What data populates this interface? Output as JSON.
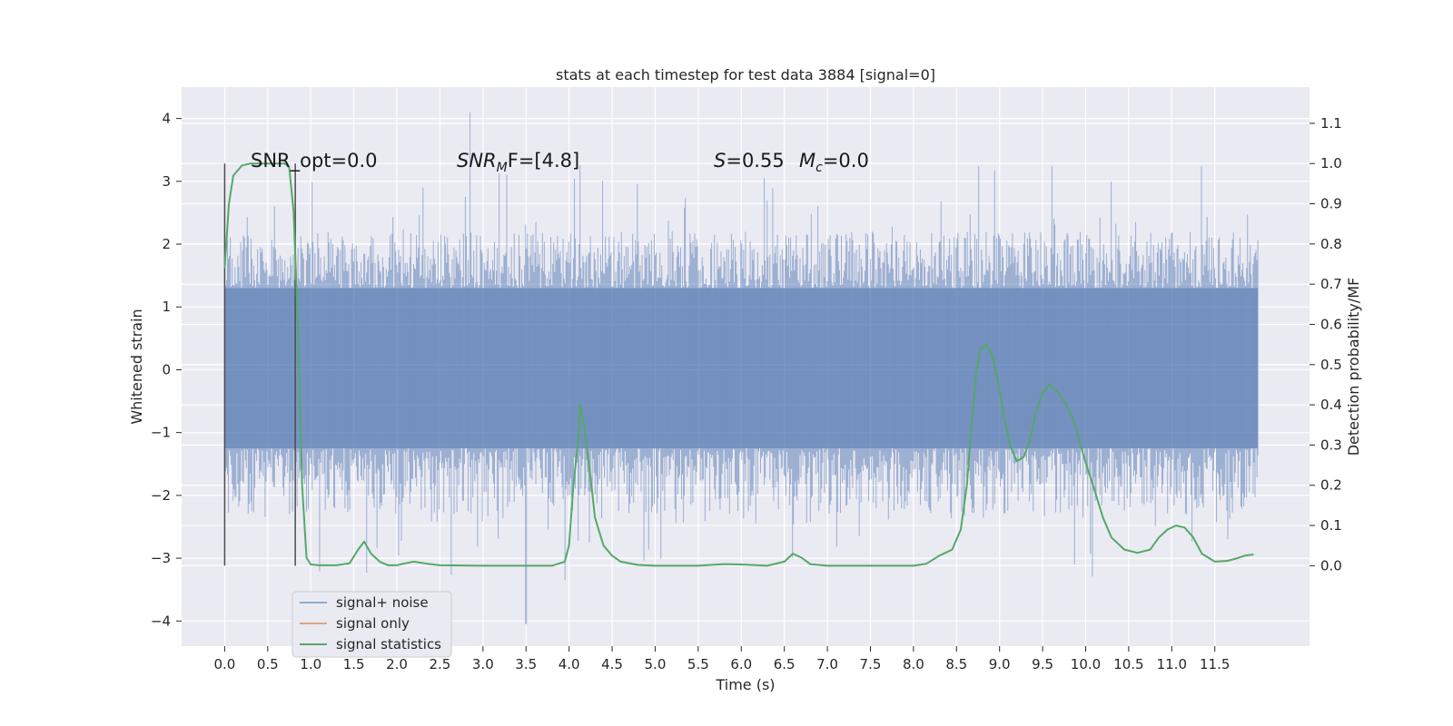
{
  "chart_data": {
    "type": "line",
    "title": "stats at each timestep for test data 3884 [signal=0]",
    "xlabel": "Time (s)",
    "ylabel_left": "Whitened strain",
    "ylabel_right": "Detection probability/MF",
    "xlim": [
      -0.5,
      12.6
    ],
    "ylim_left": [
      -4.4,
      4.5
    ],
    "ylim_right": [
      -0.2,
      1.19
    ],
    "x_ticks": [
      "0.0",
      "0.5",
      "1.0",
      "1.5",
      "2.0",
      "2.5",
      "3.0",
      "3.5",
      "4.0",
      "4.5",
      "5.0",
      "5.5",
      "6.0",
      "6.5",
      "7.0",
      "7.5",
      "8.0",
      "8.5",
      "9.0",
      "9.5",
      "10.0",
      "10.5",
      "11.0",
      "11.5"
    ],
    "y_ticks_left": [
      "4",
      "3",
      "2",
      "1",
      "0",
      "−1",
      "−2",
      "−3",
      "−4"
    ],
    "y_ticks_right": [
      "1.1",
      "1.0",
      "0.9",
      "0.8",
      "0.7",
      "0.6",
      "0.5",
      "0.4",
      "0.3",
      "0.2",
      "0.1",
      "0.0"
    ],
    "grid": true,
    "background": "#eaeaf2",
    "annotations": {
      "snr_opt": "SNR_opt=0.0",
      "snr_mf_prefix": "SNR",
      "snr_mf_sub": "M",
      "snr_mf_suffix": "F=[4.8]",
      "s_label": "S",
      "s_value": "=0.55",
      "mc_label": "M",
      "mc_sub": "c",
      "mc_value": "=0.0"
    },
    "window_markers_x": [
      0.0,
      0.82
    ],
    "series": [
      {
        "name": "signal+ noise",
        "color": "#4c72b0",
        "axis": "left",
        "kind": "dense_noise",
        "x_range": [
          0.0,
          12.0
        ],
        "band": [
          -1.25,
          1.3
        ],
        "envelope_upper": [
          2.2,
          3.5
        ],
        "envelope_lower": [
          -2.3,
          -3.6
        ],
        "peak_max": [
          2.85,
          4.1
        ],
        "peak_min": [
          3.5,
          -4.05
        ]
      },
      {
        "name": "signal only",
        "color": "#dd8452",
        "axis": "left",
        "kind": "line",
        "points": []
      },
      {
        "name": "signal statistics",
        "color": "#55a868",
        "axis": "right",
        "kind": "line",
        "points": [
          [
            0.0,
            0.74
          ],
          [
            0.05,
            0.9
          ],
          [
            0.1,
            0.97
          ],
          [
            0.2,
            0.995
          ],
          [
            0.3,
            1.0
          ],
          [
            0.4,
            1.0
          ],
          [
            0.5,
            1.0
          ],
          [
            0.6,
            1.0
          ],
          [
            0.7,
            1.0
          ],
          [
            0.75,
            0.99
          ],
          [
            0.8,
            0.88
          ],
          [
            0.85,
            0.6
          ],
          [
            0.9,
            0.2
          ],
          [
            0.95,
            0.02
          ],
          [
            1.0,
            0.003
          ],
          [
            1.1,
            0.001
          ],
          [
            1.3,
            0.001
          ],
          [
            1.45,
            0.006
          ],
          [
            1.55,
            0.04
          ],
          [
            1.62,
            0.06
          ],
          [
            1.7,
            0.03
          ],
          [
            1.8,
            0.01
          ],
          [
            1.9,
            0.001
          ],
          [
            2.0,
            0.001
          ],
          [
            2.1,
            0.006
          ],
          [
            2.2,
            0.01
          ],
          [
            2.35,
            0.005
          ],
          [
            2.5,
            0.001
          ],
          [
            3.0,
            0.0
          ],
          [
            3.5,
            0.0
          ],
          [
            3.8,
            0.0
          ],
          [
            3.95,
            0.01
          ],
          [
            4.0,
            0.05
          ],
          [
            4.05,
            0.2
          ],
          [
            4.1,
            0.3
          ],
          [
            4.13,
            0.4
          ],
          [
            4.18,
            0.34
          ],
          [
            4.25,
            0.22
          ],
          [
            4.3,
            0.12
          ],
          [
            4.4,
            0.05
          ],
          [
            4.5,
            0.025
          ],
          [
            4.6,
            0.01
          ],
          [
            4.8,
            0.002
          ],
          [
            5.0,
            0.0
          ],
          [
            5.5,
            0.0
          ],
          [
            5.8,
            0.004
          ],
          [
            6.0,
            0.003
          ],
          [
            6.3,
            0.0
          ],
          [
            6.5,
            0.01
          ],
          [
            6.6,
            0.03
          ],
          [
            6.7,
            0.02
          ],
          [
            6.8,
            0.004
          ],
          [
            7.0,
            0.0
          ],
          [
            7.5,
            0.0
          ],
          [
            8.0,
            0.0
          ],
          [
            8.15,
            0.005
          ],
          [
            8.3,
            0.025
          ],
          [
            8.45,
            0.04
          ],
          [
            8.55,
            0.09
          ],
          [
            8.62,
            0.2
          ],
          [
            8.68,
            0.36
          ],
          [
            8.73,
            0.48
          ],
          [
            8.78,
            0.54
          ],
          [
            8.85,
            0.55
          ],
          [
            8.92,
            0.52
          ],
          [
            8.98,
            0.46
          ],
          [
            9.05,
            0.37
          ],
          [
            9.12,
            0.3
          ],
          [
            9.2,
            0.26
          ],
          [
            9.28,
            0.27
          ],
          [
            9.35,
            0.31
          ],
          [
            9.42,
            0.38
          ],
          [
            9.5,
            0.43
          ],
          [
            9.58,
            0.45
          ],
          [
            9.68,
            0.43
          ],
          [
            9.78,
            0.4
          ],
          [
            9.88,
            0.35
          ],
          [
            9.98,
            0.27
          ],
          [
            10.1,
            0.19
          ],
          [
            10.2,
            0.12
          ],
          [
            10.3,
            0.07
          ],
          [
            10.45,
            0.04
          ],
          [
            10.6,
            0.032
          ],
          [
            10.75,
            0.04
          ],
          [
            10.85,
            0.07
          ],
          [
            10.95,
            0.09
          ],
          [
            11.05,
            0.1
          ],
          [
            11.15,
            0.095
          ],
          [
            11.25,
            0.07
          ],
          [
            11.35,
            0.03
          ],
          [
            11.5,
            0.01
          ],
          [
            11.65,
            0.012
          ],
          [
            11.75,
            0.018
          ],
          [
            11.85,
            0.025
          ],
          [
            11.95,
            0.028
          ]
        ]
      }
    ],
    "legend": {
      "position": "lower-left",
      "entries": [
        "signal+ noise",
        "signal only",
        "signal statistics"
      ]
    }
  }
}
